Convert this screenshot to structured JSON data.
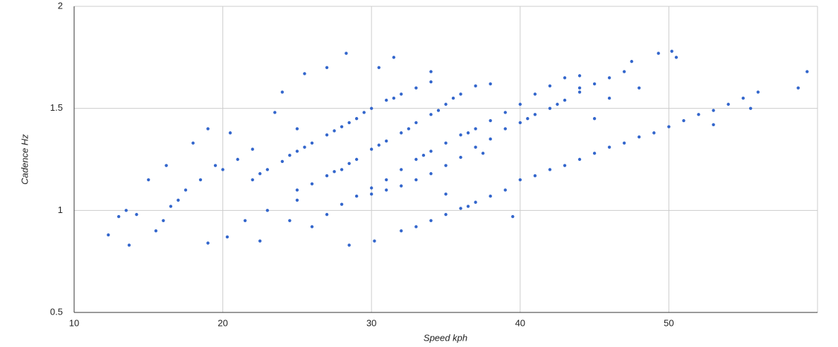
{
  "chart_data": {
    "type": "scatter",
    "x_label": "Speed kph",
    "y_label": "Cadence Hz",
    "color": "#3366cc",
    "grid": true,
    "xlim": [
      10,
      60
    ],
    "xticks": [
      10,
      20,
      30,
      40,
      50
    ],
    "ylim": [
      0.5,
      2
    ],
    "yticks": [
      0.5,
      1,
      1.5,
      2
    ],
    "x": [
      22,
      23,
      24,
      25,
      26,
      27,
      28,
      29,
      30,
      31,
      32,
      33,
      34,
      24.5,
      27.5,
      29.5,
      31.5,
      22.5,
      25.5,
      28.5,
      25,
      26,
      27,
      28,
      29,
      30,
      31,
      32,
      33,
      34,
      35,
      36,
      37,
      38,
      30.5,
      32.5,
      34.5,
      27.5,
      35.5,
      28.5,
      27,
      28,
      29,
      30,
      31,
      32,
      33,
      34,
      35,
      36,
      37,
      38,
      39,
      40,
      41,
      42,
      43,
      44,
      33.5,
      36.5,
      30,
      31,
      32,
      33,
      34,
      35,
      36,
      37,
      38,
      39,
      40,
      41,
      42,
      43,
      44,
      45,
      46,
      47,
      40.5,
      42.5,
      32,
      33,
      34,
      35,
      36,
      37,
      38,
      39,
      40,
      41,
      42,
      43,
      44,
      45,
      46,
      47,
      48,
      49,
      50,
      51,
      52,
      53,
      54,
      55,
      56,
      58.7,
      59.3,
      55.5,
      53,
      36.5,
      12.3,
      13,
      13.5,
      13.7,
      14.2,
      15,
      15.5,
      16,
      16.5,
      17,
      17.5,
      18,
      18.5,
      19,
      19.5,
      20,
      20.3,
      20.5,
      21,
      21.5,
      22,
      22.5,
      23,
      23.5,
      24,
      25,
      25.5,
      26,
      27,
      28.3,
      28.5,
      30.2,
      30.5,
      31.5,
      34,
      39.5,
      47.5,
      49.3,
      50.2,
      50.5,
      48,
      45,
      44,
      46,
      37.5,
      35,
      25,
      24.5,
      19,
      16.2
    ],
    "values": [
      1.15,
      1.2,
      1.24,
      1.29,
      1.33,
      1.37,
      1.41,
      1.45,
      1.5,
      1.54,
      1.57,
      1.6,
      1.63,
      1.27,
      1.39,
      1.48,
      1.55,
      1.18,
      1.31,
      1.43,
      1.1,
      1.13,
      1.17,
      1.2,
      1.25,
      1.3,
      1.34,
      1.38,
      1.43,
      1.47,
      1.52,
      1.57,
      1.61,
      1.62,
      1.32,
      1.4,
      1.49,
      1.19,
      1.55,
      1.23,
      0.98,
      1.03,
      1.07,
      1.11,
      1.15,
      1.2,
      1.25,
      1.29,
      1.33,
      1.37,
      1.4,
      1.44,
      1.48,
      1.52,
      1.57,
      1.61,
      1.65,
      1.66,
      1.27,
      1.38,
      1.08,
      1.1,
      1.12,
      1.15,
      1.18,
      1.22,
      1.26,
      1.31,
      1.35,
      1.4,
      1.43,
      1.47,
      1.5,
      1.54,
      1.58,
      1.62,
      1.65,
      1.68,
      1.45,
      1.52,
      0.9,
      0.92,
      0.95,
      0.98,
      1.01,
      1.04,
      1.07,
      1.1,
      1.15,
      1.17,
      1.2,
      1.22,
      1.25,
      1.28,
      1.31,
      1.33,
      1.36,
      1.38,
      1.41,
      1.44,
      1.47,
      1.49,
      1.52,
      1.55,
      1.58,
      1.6,
      1.68,
      1.5,
      1.42,
      1.02,
      0.88,
      0.97,
      1.0,
      0.83,
      0.98,
      1.15,
      0.9,
      0.95,
      1.02,
      1.05,
      1.1,
      1.33,
      1.15,
      1.4,
      1.22,
      1.2,
      0.87,
      1.38,
      1.25,
      0.95,
      1.3,
      0.85,
      1.0,
      1.48,
      1.58,
      1.4,
      1.67,
      0.92,
      1.7,
      1.77,
      0.83,
      0.85,
      1.7,
      1.75,
      1.68,
      0.97,
      1.73,
      1.77,
      1.78,
      1.75,
      1.6,
      1.45,
      1.6,
      1.55,
      1.28,
      1.08,
      1.05,
      0.95,
      0.84,
      1.22
    ]
  }
}
